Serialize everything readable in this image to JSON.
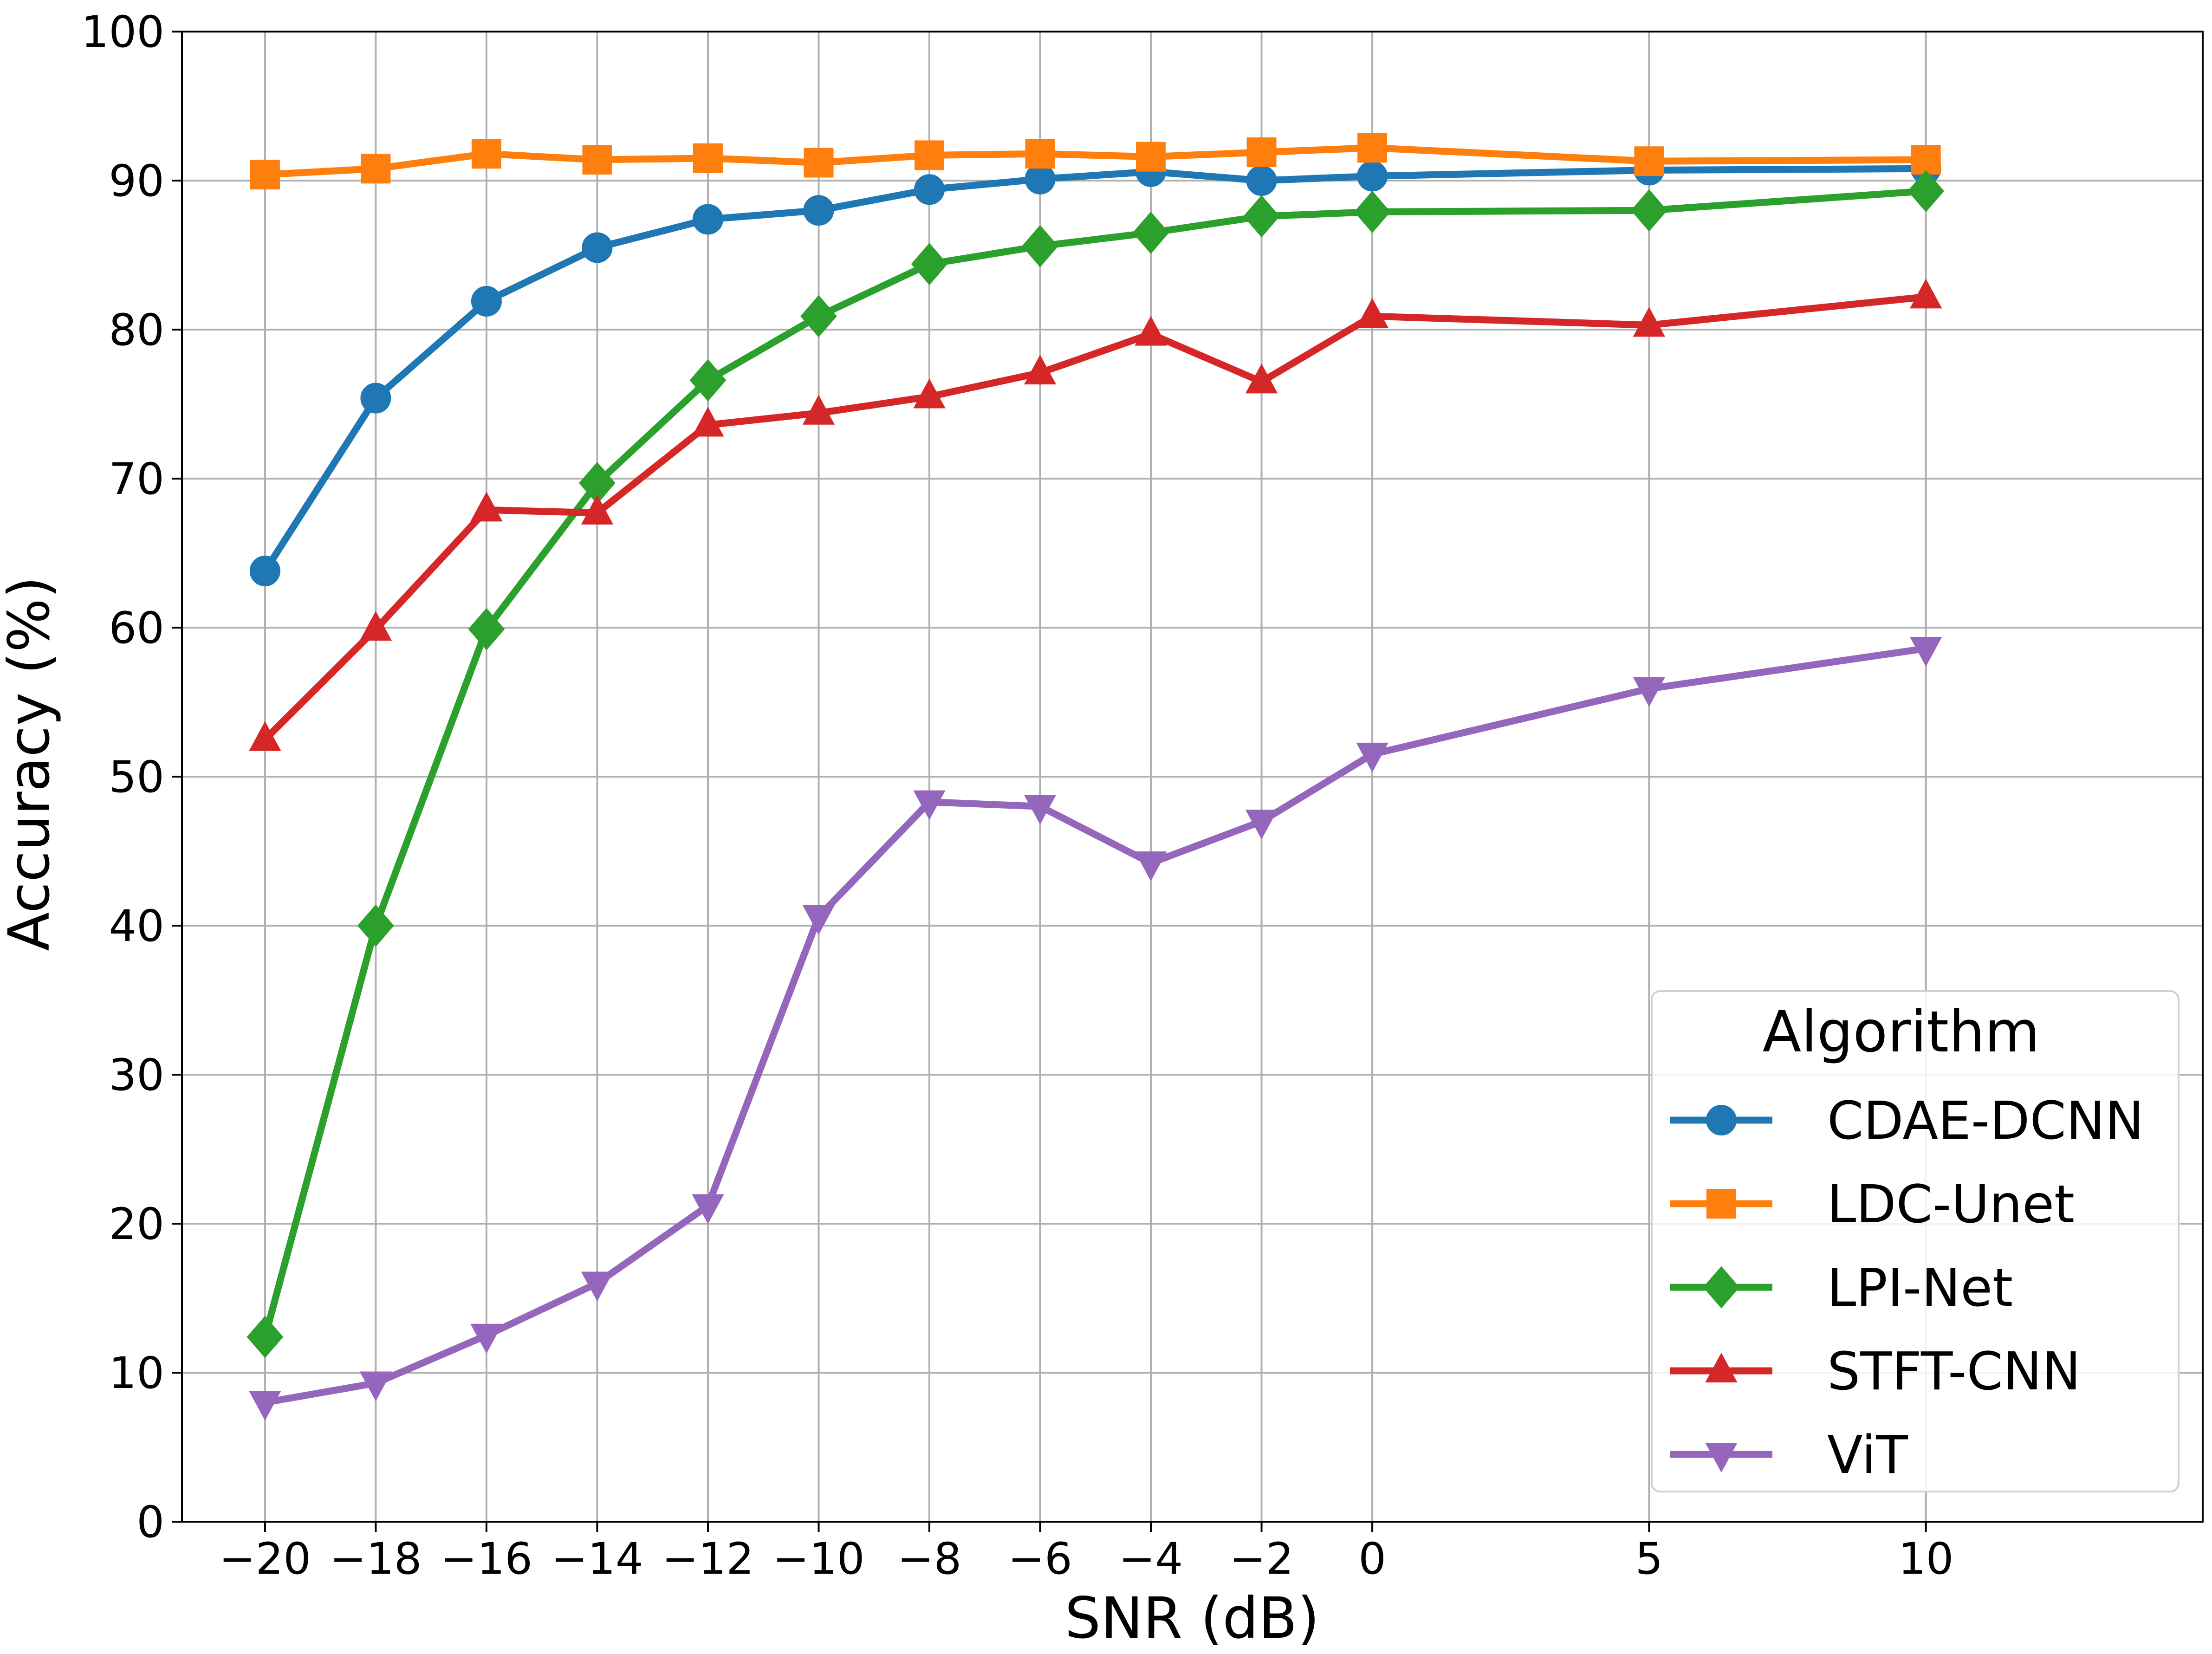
{
  "chart_data": {
    "type": "line",
    "title": "",
    "xlabel": "SNR (dB)",
    "ylabel": "Accuracy (%)",
    "x": [
      -20,
      -18,
      -16,
      -14,
      -12,
      -10,
      -8,
      -6,
      -4,
      -2,
      0,
      5,
      10
    ],
    "x_tick_labels": [
      "−20",
      "−18",
      "−16",
      "−14",
      "−12",
      "−10",
      "−8",
      "−6",
      "−4",
      "−2",
      "0",
      "5",
      "10"
    ],
    "xlim": [
      -21.5,
      15
    ],
    "ylim": [
      0,
      100
    ],
    "y_ticks": [
      0,
      10,
      20,
      30,
      40,
      50,
      60,
      70,
      80,
      90,
      100
    ],
    "grid": true,
    "legend": {
      "title": "Algorithm",
      "position": "lower-right"
    },
    "series": [
      {
        "name": "CDAE-DCNN",
        "color": "#1f77b4",
        "marker": "circle",
        "values": [
          63.8,
          75.4,
          81.9,
          85.5,
          87.4,
          88.0,
          89.4,
          90.1,
          90.6,
          90.0,
          90.3,
          90.7,
          90.8
        ]
      },
      {
        "name": "LDC-Unet",
        "color": "#ff7f0e",
        "marker": "square",
        "values": [
          90.4,
          90.8,
          91.8,
          91.4,
          91.5,
          91.2,
          91.7,
          91.8,
          91.6,
          91.9,
          92.2,
          91.3,
          91.4
        ]
      },
      {
        "name": "LPI-Net",
        "color": "#2ca02c",
        "marker": "diamond",
        "values": [
          12.4,
          40.0,
          59.9,
          69.7,
          76.6,
          80.9,
          84.4,
          85.6,
          86.5,
          87.6,
          87.9,
          88.0,
          89.3
        ]
      },
      {
        "name": "STFT-CNN",
        "color": "#d62728",
        "marker": "triangle-up",
        "values": [
          52.5,
          59.9,
          67.9,
          67.7,
          73.6,
          74.4,
          75.5,
          77.1,
          79.7,
          76.5,
          80.9,
          80.3,
          82.2
        ]
      },
      {
        "name": "ViT",
        "color": "#9467bd",
        "marker": "triangle-down",
        "values": [
          8.0,
          9.3,
          12.5,
          16.0,
          21.2,
          40.6,
          48.3,
          48.0,
          44.2,
          47.0,
          51.5,
          55.9,
          58.6
        ]
      }
    ]
  }
}
